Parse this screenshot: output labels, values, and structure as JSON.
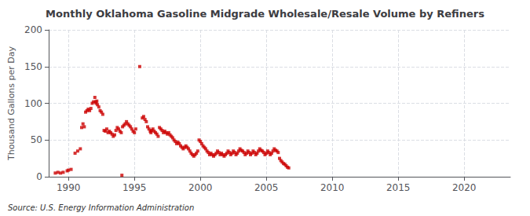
{
  "chart_data": {
    "type": "scatter",
    "title": "Monthly Oklahoma Gasoline Midgrade Wholesale/Resale Volume by Refiners",
    "ylabel": "Thousand Gallons per Day",
    "annotations": [
      "Source: U.S. Energy Information Administration"
    ],
    "color": "#cc0000",
    "marker": "square",
    "grid": true,
    "xlim": [
      1988.5,
      2023.5
    ],
    "xticks": [
      1990,
      1995,
      2000,
      2005,
      2010,
      2015,
      2020
    ],
    "ylim": [
      0,
      200
    ],
    "yticks": [
      0,
      50,
      100,
      150,
      200
    ],
    "x": [
      1989.0,
      1989.2,
      1989.4,
      1989.6,
      1989.9,
      1990.0,
      1990.2,
      1990.5,
      1990.7,
      1990.9,
      1991.0,
      1991.1,
      1991.2,
      1991.3,
      1991.4,
      1991.5,
      1991.6,
      1991.7,
      1991.8,
      1991.9,
      1992.0,
      1992.05,
      1992.1,
      1992.15,
      1992.2,
      1992.3,
      1992.4,
      1992.5,
      1992.6,
      1992.7,
      1992.8,
      1992.9,
      1993.0,
      1993.1,
      1993.2,
      1993.3,
      1993.4,
      1993.5,
      1993.6,
      1993.7,
      1993.8,
      1993.9,
      1994.0,
      1994.05,
      1994.1,
      1994.2,
      1994.3,
      1994.4,
      1994.5,
      1994.6,
      1994.7,
      1994.8,
      1994.9,
      1995.0,
      1995.1,
      1995.4,
      1995.6,
      1995.7,
      1995.8,
      1995.9,
      1996.0,
      1996.1,
      1996.2,
      1996.25,
      1996.3,
      1996.4,
      1996.5,
      1996.6,
      1996.7,
      1996.8,
      1996.9,
      1997.0,
      1997.1,
      1997.2,
      1997.3,
      1997.4,
      1997.5,
      1997.6,
      1997.7,
      1997.8,
      1997.9,
      1998.0,
      1998.1,
      1998.2,
      1998.3,
      1998.4,
      1998.5,
      1998.6,
      1998.7,
      1998.8,
      1998.9,
      1999.0,
      1999.1,
      1999.2,
      1999.3,
      1999.4,
      1999.5,
      1999.6,
      1999.7,
      1999.8,
      1999.9,
      2000.0,
      2000.1,
      2000.2,
      2000.3,
      2000.4,
      2000.5,
      2000.6,
      2000.7,
      2000.8,
      2000.9,
      2001.0,
      2001.1,
      2001.2,
      2001.3,
      2001.4,
      2001.5,
      2001.6,
      2001.7,
      2001.8,
      2001.9,
      2002.0,
      2002.1,
      2002.2,
      2002.3,
      2002.4,
      2002.5,
      2002.6,
      2002.7,
      2002.8,
      2002.9,
      2003.0,
      2003.1,
      2003.2,
      2003.3,
      2003.4,
      2003.5,
      2003.6,
      2003.7,
      2003.8,
      2003.9,
      2004.0,
      2004.1,
      2004.2,
      2004.3,
      2004.4,
      2004.5,
      2004.6,
      2004.7,
      2004.8,
      2004.9,
      2005.0,
      2005.1,
      2005.2,
      2005.3,
      2005.4,
      2005.5,
      2005.6,
      2005.7,
      2005.8,
      2005.9,
      2006.0,
      2006.1,
      2006.2,
      2006.3,
      2006.4,
      2006.5,
      2006.6,
      2006.7
    ],
    "values": [
      5,
      6,
      5,
      6,
      8,
      9,
      10,
      32,
      35,
      38,
      67,
      72,
      68,
      88,
      90,
      92,
      90,
      93,
      100,
      102,
      108,
      102,
      100,
      103,
      98,
      95,
      90,
      88,
      85,
      63,
      62,
      65,
      60,
      62,
      60,
      58,
      55,
      57,
      63,
      67,
      65,
      62,
      60,
      2,
      68,
      70,
      72,
      75,
      72,
      70,
      68,
      65,
      62,
      60,
      65,
      150,
      80,
      82,
      78,
      75,
      68,
      65,
      62,
      60,
      63,
      65,
      62,
      60,
      58,
      55,
      67,
      65,
      63,
      60,
      62,
      60,
      58,
      60,
      57,
      55,
      53,
      50,
      48,
      45,
      47,
      45,
      42,
      40,
      38,
      40,
      42,
      40,
      38,
      35,
      32,
      30,
      28,
      30,
      32,
      35,
      50,
      48,
      45,
      42,
      40,
      38,
      35,
      33,
      30,
      32,
      30,
      28,
      30,
      32,
      35,
      33,
      30,
      32,
      30,
      28,
      30,
      32,
      35,
      33,
      30,
      32,
      35,
      33,
      30,
      32,
      35,
      38,
      36,
      35,
      33,
      30,
      32,
      35,
      33,
      30,
      32,
      35,
      33,
      30,
      32,
      35,
      38,
      36,
      35,
      33,
      30,
      32,
      35,
      33,
      30,
      32,
      35,
      38,
      36,
      35,
      33,
      25,
      22,
      20,
      18,
      17,
      15,
      13,
      12
    ]
  }
}
